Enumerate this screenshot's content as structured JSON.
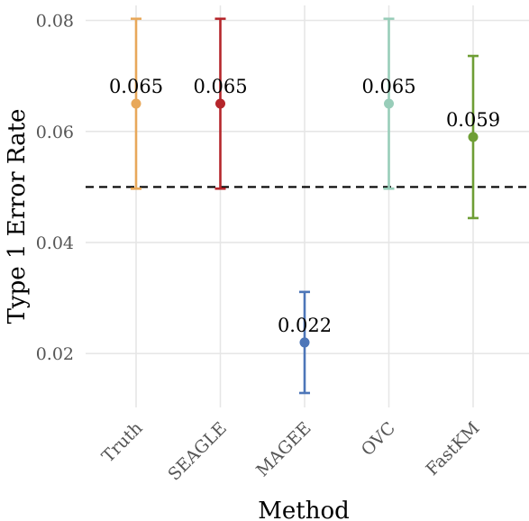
{
  "chart_data": {
    "type": "scatter",
    "xlabel": "Method",
    "ylabel": "Type 1 Error Rate",
    "categories": [
      "Truth",
      "SEAGLE",
      "MAGEE",
      "OVC",
      "FastKM"
    ],
    "points": [
      {
        "category": "Truth",
        "value": 0.065,
        "lower": 0.0497,
        "upper": 0.0803,
        "label": "0.065",
        "color": "#E8A85A"
      },
      {
        "category": "SEAGLE",
        "value": 0.065,
        "lower": 0.0497,
        "upper": 0.0803,
        "label": "0.065",
        "color": "#B5262B"
      },
      {
        "category": "MAGEE",
        "value": 0.022,
        "lower": 0.0129,
        "upper": 0.0311,
        "label": "0.022",
        "color": "#4D76B8"
      },
      {
        "category": "OVC",
        "value": 0.065,
        "lower": 0.0497,
        "upper": 0.0803,
        "label": "0.065",
        "color": "#98CDB9"
      },
      {
        "category": "FastKM",
        "value": 0.059,
        "lower": 0.0444,
        "upper": 0.0736,
        "label": "0.059",
        "color": "#6E9E35"
      }
    ],
    "yticks": [
      0.02,
      0.04,
      0.06,
      0.08
    ],
    "ytick_labels": [
      "0.02",
      "0.04",
      "0.06",
      "0.08"
    ],
    "ylim": [
      0.0103,
      0.0827
    ],
    "reference_line": {
      "value": 0.05,
      "style": "dashed",
      "color": "#000000"
    },
    "grid": true,
    "legend": "none"
  }
}
